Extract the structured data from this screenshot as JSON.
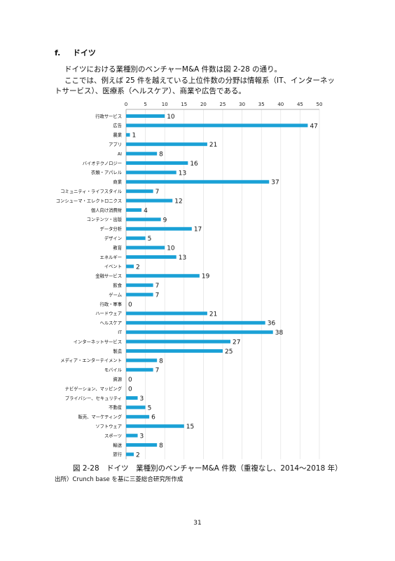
{
  "section": {
    "number": "f.",
    "title": "ドイツ"
  },
  "paragraphs": [
    "ドイツにおける業種別のベンチャーM&A 件数は図 2-28 の通り。",
    "ここでは、例えば 25 件を越えている上位件数の分野は情報系（IT、インターネットサービス）、医療系（ヘルスケア）、商業や広告である。"
  ],
  "chart_data": {
    "type": "bar",
    "orientation": "horizontal",
    "categories": [
      "行政サービス",
      "広告",
      "農業",
      "アプリ",
      "AI",
      "バイオテクノロジー",
      "衣類・アパレル",
      "商業",
      "コミュニティ・ライフスタイル",
      "コンシューマ・エレクトロニクス",
      "個人向け消費財",
      "コンテンツ・出版",
      "データ分析",
      "デザイン",
      "教育",
      "エネルギー",
      "イベント",
      "金融サービス",
      "飲食",
      "ゲーム",
      "行政・軍事",
      "ハードウェア",
      "ヘルスケア",
      "IT",
      "インターネットサービス",
      "製造",
      "メディア・エンターテイメント",
      "モバイル",
      "資源",
      "ナビゲーション、マッピング",
      "プライバシー、セキュリティ",
      "不動産",
      "販売、マーケティング",
      "ソフトウェア",
      "スポーツ",
      "輸送",
      "旅行"
    ],
    "values": [
      10,
      47,
      1,
      21,
      8,
      16,
      13,
      37,
      7,
      12,
      4,
      9,
      17,
      5,
      10,
      13,
      2,
      19,
      7,
      7,
      0,
      21,
      36,
      38,
      27,
      25,
      8,
      7,
      0,
      0,
      3,
      5,
      6,
      15,
      3,
      8,
      2
    ],
    "xlim": [
      0,
      50
    ],
    "xticks": [
      0,
      5,
      10,
      15,
      20,
      25,
      30,
      35,
      40,
      45,
      50
    ],
    "axis_position": "top",
    "grid": true,
    "data_labels": true,
    "bar_color": "#1ba1d6"
  },
  "caption": "図 2-28　ドイツ　業種別のベンチャーM&A 件数（重複なし、2014～2018 年）",
  "source": "出所）Crunch base を基に三菱総合研究所作成",
  "page_number": "31"
}
